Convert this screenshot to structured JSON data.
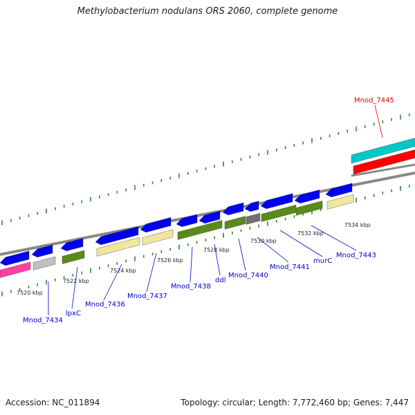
{
  "title": "Methylobacterium nodulans ORS 2060, complete genome",
  "footer": {
    "accession": "Accession: NC_011894",
    "topology": "Topology: circular; Length: 7,772,460 bp; Genes: 7,447"
  },
  "colors": {
    "strand_forward": "#0000ee",
    "strand_reverse": "#0000ee",
    "cog_green": "#5a8a1a",
    "cog_yellow": "#f0e6a0",
    "cog_gray": "#c0c0c0",
    "cog_darkgray": "#707070",
    "cog_magenta": "#ff40a0",
    "highlight_red": "#ff0000",
    "highlight_cyan": "#00c8c8",
    "tick_green": "#2a8a2a",
    "backbone": "#888888",
    "label_blue": "#0000cc",
    "label_red": "#dd0000"
  },
  "scale_labels": [
    "7520 kbp",
    "7522 kbp",
    "7524 kbp",
    "7526 kbp",
    "7528 kbp",
    "7530 kbp",
    "7532 kbp",
    "7534 kbp"
  ],
  "gene_labels": [
    {
      "text": "Mnod_7434",
      "color": "blue"
    },
    {
      "text": "lpxC",
      "color": "blue"
    },
    {
      "text": "Mnod_7436",
      "color": "blue"
    },
    {
      "text": "Mnod_7437",
      "color": "blue"
    },
    {
      "text": "Mnod_7438",
      "color": "blue"
    },
    {
      "text": "ddl",
      "color": "blue"
    },
    {
      "text": "Mnod_7440",
      "color": "blue"
    },
    {
      "text": "Mnod_7441",
      "color": "blue"
    },
    {
      "text": "murC",
      "color": "blue"
    },
    {
      "text": "Mnod_7443",
      "color": "blue"
    },
    {
      "text": "Mnod_7445",
      "color": "red"
    }
  ]
}
